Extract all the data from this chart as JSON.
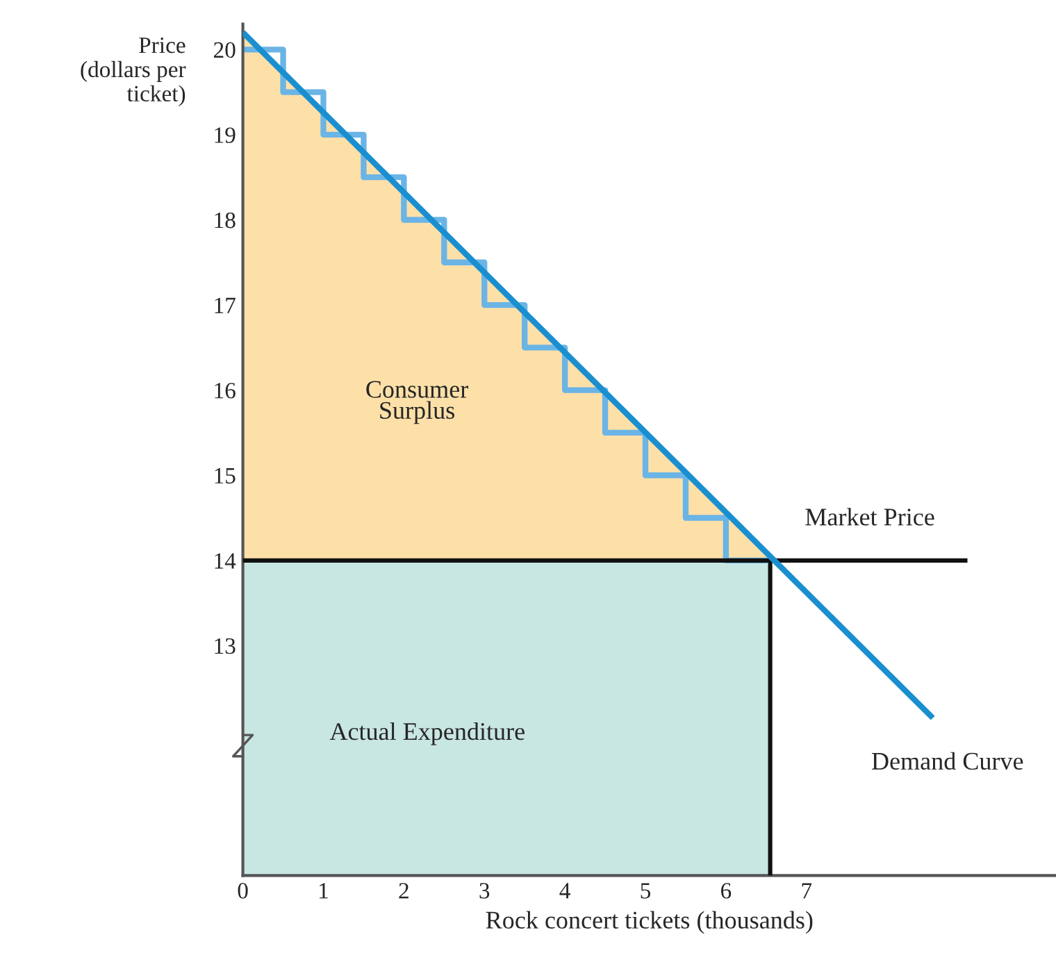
{
  "chart_data": {
    "type": "area",
    "xlabel": "Rock concert tickets (thousands)",
    "ylabel": "Price\n(dollars per\nticket)",
    "xlim": [
      0,
      10.1
    ],
    "ylim": [
      10.3,
      20.3
    ],
    "xticks": [
      0,
      1,
      2,
      3,
      4,
      5,
      6,
      7
    ],
    "yticks": [
      13,
      14,
      15,
      16,
      17,
      18,
      19,
      20
    ],
    "grid": false,
    "legend": false,
    "series": [
      {
        "name": "Consumer\nSurplus",
        "color": "#fde0a8",
        "x": [
          0,
          6.55
        ],
        "values": [
          20.2,
          14
        ]
      },
      {
        "name": "Actual Expenditure",
        "color": "#c8e6e2",
        "x": [
          0,
          6.55
        ],
        "values": [
          14,
          14
        ]
      },
      {
        "type": "step",
        "color": "#6ab4e6",
        "x": [
          0,
          0.5,
          1,
          1.5,
          2,
          2.5,
          3,
          3.5,
          4,
          4.5,
          5,
          5.5,
          6,
          6.5
        ],
        "values": [
          20,
          19.5,
          19,
          18.5,
          18,
          17.5,
          17,
          16.5,
          16,
          15.5,
          15,
          14.5,
          14,
          14
        ]
      },
      {
        "type": "line",
        "name": "Market Price",
        "color": "#111111",
        "x": [
          0,
          9
        ],
        "values": [
          14,
          14
        ]
      },
      {
        "type": "line",
        "color": "#111111",
        "x": [
          6.55,
          6.55
        ],
        "values": [
          10.3,
          14
        ]
      },
      {
        "type": "line",
        "name": "Demand Curve",
        "color": "#1a8fd0",
        "x": [
          0,
          8.57
        ],
        "values": [
          20.2,
          12.15
        ]
      }
    ]
  }
}
